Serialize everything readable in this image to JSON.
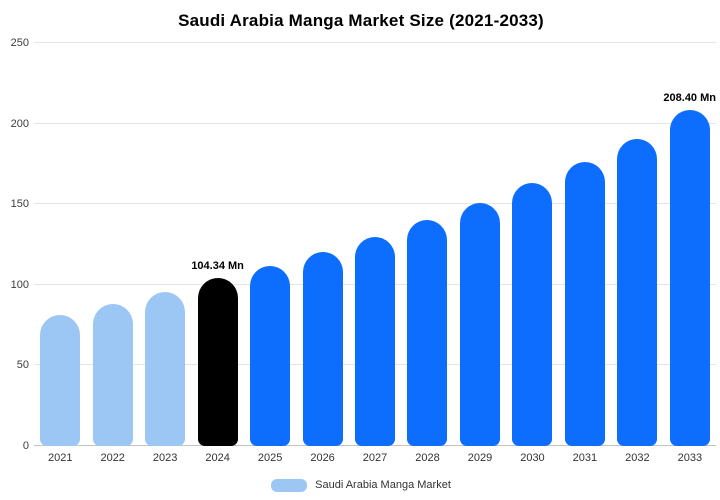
{
  "chart_data": {
    "type": "bar",
    "title": "Saudi Arabia Manga Market Size (2021-2033)",
    "xlabel": "",
    "ylabel": "",
    "categories": [
      "2021",
      "2022",
      "2023",
      "2024",
      "2025",
      "2026",
      "2027",
      "2028",
      "2029",
      "2030",
      "2031",
      "2032",
      "2033"
    ],
    "values": [
      81,
      88,
      95.5,
      104.34,
      111.5,
      120.5,
      129.5,
      140,
      151,
      163,
      176,
      190.5,
      208.4
    ],
    "colors": [
      "#9cc7f5",
      "#9cc7f5",
      "#9cc7f5",
      "#000000",
      "#0d6efd",
      "#0d6efd",
      "#0d6efd",
      "#0d6efd",
      "#0d6efd",
      "#0d6efd",
      "#0d6efd",
      "#0d6efd",
      "#0d6efd"
    ],
    "ylim": [
      0,
      250
    ],
    "yticks": [
      0,
      50,
      100,
      150,
      200,
      250
    ],
    "grid": true,
    "annotations": [
      {
        "category": "2024",
        "text": "104.34 Mn"
      },
      {
        "category": "2033",
        "text": "208.40 Mn"
      }
    ],
    "legend": "Saudi Arabia Manga Market",
    "legend_position": "bottom",
    "legend_color": "#9cc7f5",
    "accent_blue": "#0d6efd",
    "light_blue": "#9cc7f5",
    "highlight_black": "#000000"
  }
}
